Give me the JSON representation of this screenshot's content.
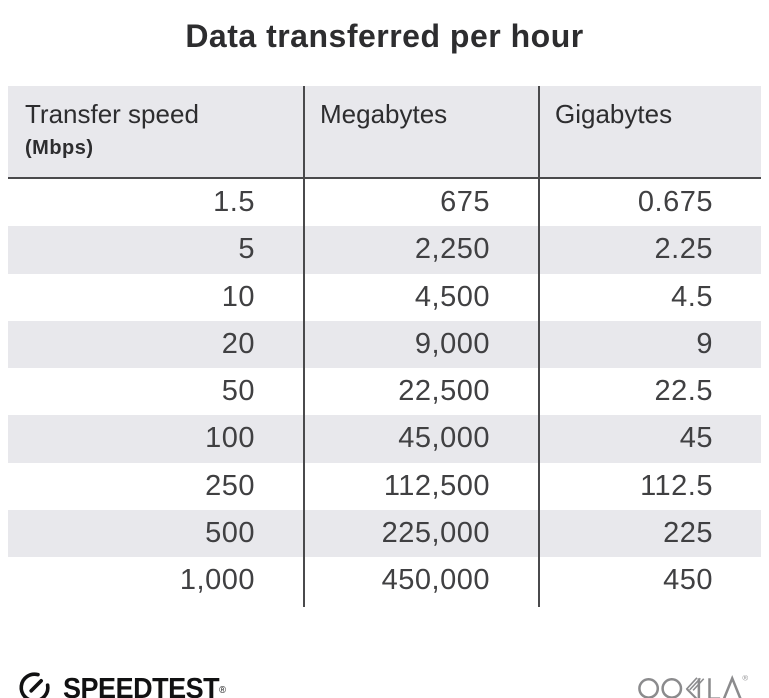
{
  "title": "Data transferred per hour",
  "table": {
    "columns": [
      {
        "label": "Transfer speed",
        "sublabel": "(Mbps)"
      },
      {
        "label": "Megabytes",
        "sublabel": ""
      },
      {
        "label": "Gigabytes",
        "sublabel": ""
      }
    ],
    "rows": [
      [
        "1.5",
        "675",
        "0.675"
      ],
      [
        "5",
        "2,250",
        "2.25"
      ],
      [
        "10",
        "4,500",
        "4.5"
      ],
      [
        "20",
        "9,000",
        "9"
      ],
      [
        "50",
        "22,500",
        "22.5"
      ],
      [
        "100",
        "45,000",
        "45"
      ],
      [
        "250",
        "112,500",
        "112.5"
      ],
      [
        "500",
        "225,000",
        "225"
      ],
      [
        "1,000",
        "450,000",
        "450"
      ]
    ]
  },
  "footer": {
    "speedtest_label": "SPEEDTEST",
    "speedtest_registered": "®",
    "ookla_label": "OOKLA",
    "ookla_registered": "®"
  },
  "colors": {
    "header_bg": "#e8e8ec",
    "stripe_bg": "#e8e8ec",
    "divider": "#4a4a4c",
    "title_text": "#2d2d2f",
    "cell_text": "#404042",
    "speedtest_black": "#111112",
    "ookla_gray": "#8b8b8d"
  },
  "chart_data": {
    "type": "table",
    "title": "Data transferred per hour",
    "columns": [
      "Transfer speed (Mbps)",
      "Megabytes",
      "Gigabytes"
    ],
    "rows": [
      [
        1.5,
        675,
        0.675
      ],
      [
        5,
        2250,
        2.25
      ],
      [
        10,
        4500,
        4.5
      ],
      [
        20,
        9000,
        9
      ],
      [
        50,
        22500,
        22.5
      ],
      [
        100,
        45000,
        45
      ],
      [
        250,
        112500,
        112.5
      ],
      [
        500,
        225000,
        225
      ],
      [
        1000,
        450000,
        450
      ]
    ]
  }
}
